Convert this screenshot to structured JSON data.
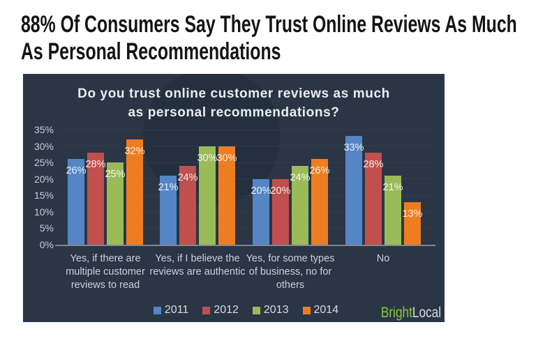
{
  "page": {
    "headline": "88% Of Consumers Say They Trust Online Reviews As Much As Personal Recommendations"
  },
  "chart": {
    "title_line1": "Do you trust online customer reviews as much",
    "title_line2": "as personal recommendations?",
    "background_color": "#2a3645",
    "gridline_color": "#37445a",
    "axis_line_color": "#7d8893",
    "tick_label_color": "#c7ced6",
    "category_label_color": "#c9d0d8",
    "bar_label_color": "#ffffff",
    "category_lines": [
      [
        "Yes, if there are",
        "multiple customer",
        "reviews to read"
      ],
      [
        "Yes, if I believe the",
        "reviews are authentic"
      ],
      [
        "Yes, for some types",
        "of business, no for",
        "others"
      ],
      [
        "No"
      ]
    ],
    "brand": {
      "part1": "Bright",
      "part2": "Local",
      "part1_color": "#8dc63f",
      "part2_color": "#d9dcdf"
    }
  },
  "chart_data": {
    "type": "bar",
    "title": "Do you trust online customer reviews as much as personal recommendations?",
    "categories": [
      "Yes, if there are multiple customer reviews to read",
      "Yes, if I believe the reviews are authentic",
      "Yes, for some types of business, no for others",
      "No"
    ],
    "series": [
      {
        "name": "2011",
        "color": "#5585c4",
        "values": [
          26,
          21,
          20,
          33
        ]
      },
      {
        "name": "2012",
        "color": "#c0504d",
        "values": [
          28,
          24,
          20,
          28
        ]
      },
      {
        "name": "2013",
        "color": "#9bbb59",
        "values": [
          25,
          30,
          24,
          21
        ]
      },
      {
        "name": "2014",
        "color": "#ee7d22",
        "values": [
          32,
          30,
          26,
          13
        ]
      }
    ],
    "data_labels": [
      [
        "26%",
        "28%",
        "25%",
        "32%"
      ],
      [
        "21%",
        "24%",
        "30%",
        "30%"
      ],
      [
        "20%",
        "20%",
        "24%",
        "26%"
      ],
      [
        "33%",
        "28%",
        "21%",
        "13%"
      ]
    ],
    "y_ticks": [
      "0%",
      "5%",
      "10%",
      "15%",
      "20%",
      "25%",
      "30%",
      "35%"
    ],
    "ylim": [
      0,
      35
    ],
    "grid": true,
    "legend_position": "bottom"
  }
}
